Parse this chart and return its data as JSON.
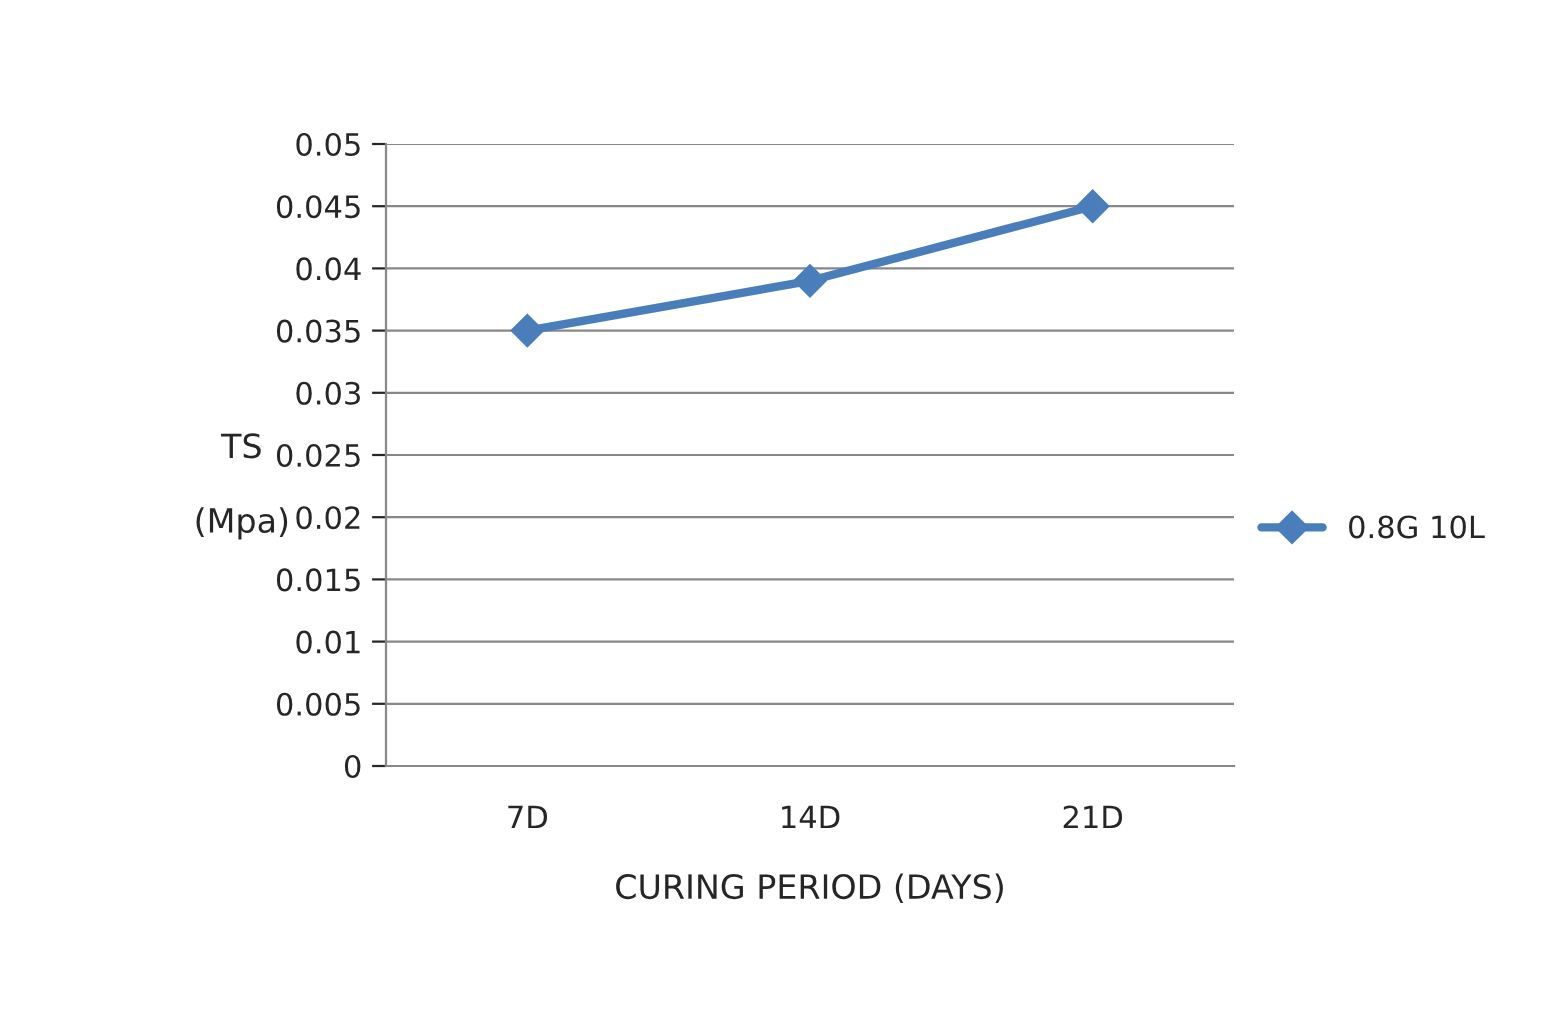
{
  "chart_data": {
    "type": "line",
    "xlabel": "CURING PERIOD (DAYS)",
    "ylabel": "TS\n\n(Mpa)",
    "categories": [
      "7D",
      "14D",
      "21D"
    ],
    "series": [
      {
        "name": "0.8G 10L",
        "color": "#4a7ebb",
        "values": [
          0.035,
          0.039,
          0.045
        ]
      }
    ],
    "ylim": [
      0,
      0.05
    ],
    "yticks": [
      0,
      0.005,
      0.01,
      0.015,
      0.02,
      0.025,
      0.03,
      0.035,
      0.04,
      0.045,
      0.05
    ],
    "grid": "y",
    "legend": "right",
    "marker": "diamond",
    "line_style": "solid"
  }
}
